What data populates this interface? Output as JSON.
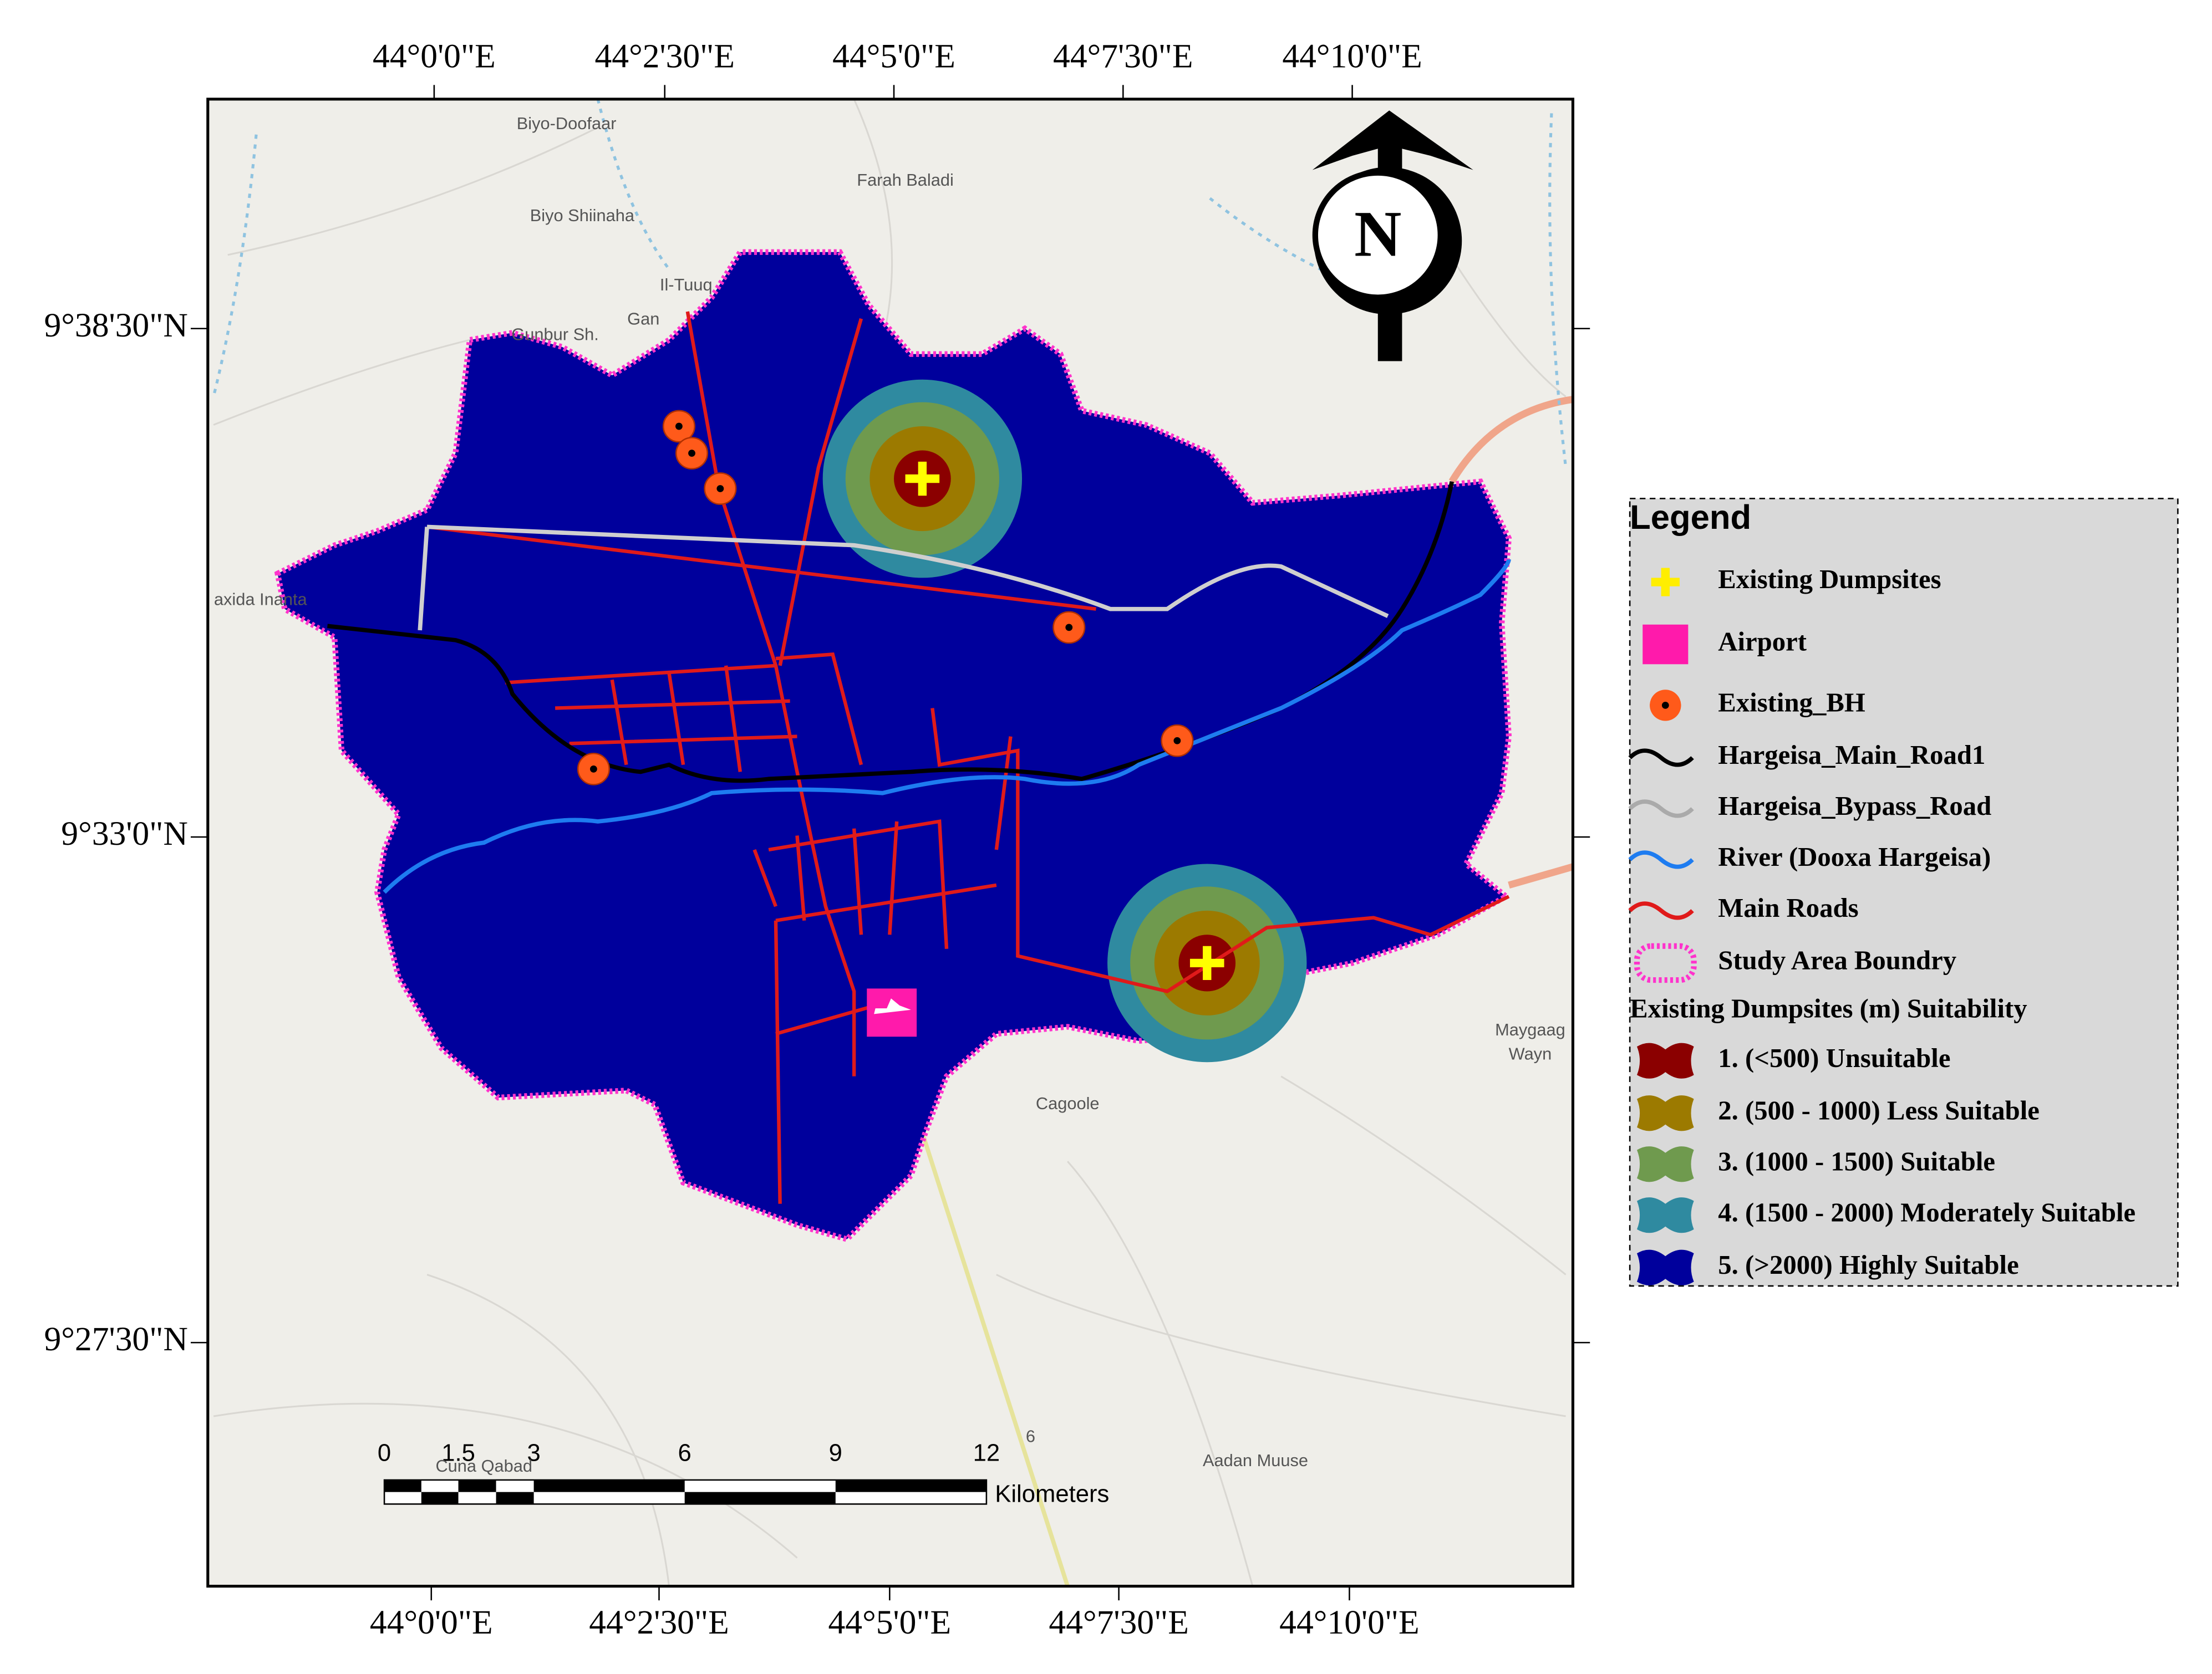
{
  "map": {
    "lon_labels": [
      "44°0'0\"E",
      "44°2'30\"E",
      "44°5'0\"E",
      "44°7'30\"E",
      "44°10'0\"E"
    ],
    "lat_labels": [
      "9°38'30\"N",
      "9°33'0\"N",
      "9°27'30\"N"
    ],
    "places": [
      "Biyo-Doofaar",
      "Farah Baladi",
      "Biyo Shiinaha",
      "Il-Tuuq",
      "Gunbur Sh.",
      "Gan",
      "axida Inanta",
      "Maygaag",
      "Wayn",
      "Cagoole",
      "Aadan Muuse",
      "Cuna Qabad",
      "6"
    ],
    "north": "N",
    "scale": {
      "labels": [
        "0",
        "1.5",
        "3",
        "6",
        "9",
        "12"
      ],
      "unit": "Kilometers"
    },
    "legend": {
      "title": "Legend",
      "items": [
        "Existing Dumpsites",
        "Airport",
        "Existing_BH",
        "Hargeisa_Main_Road1",
        "Hargeisa_Bypass_Road",
        "River (Dooxa Hargeisa)",
        "Main Roads",
        "Study Area Boundry"
      ],
      "section": "Existing Dumpsites (m) Suitability",
      "classes": [
        "1. (<500) Unsuitable",
        "2. (500 - 1000) Less Suitable",
        "3. (1000 - 1500) Suitable",
        "4. (1500 - 2000) Moderately Suitable",
        "5. (>2000) Highly Suitable"
      ]
    }
  }
}
